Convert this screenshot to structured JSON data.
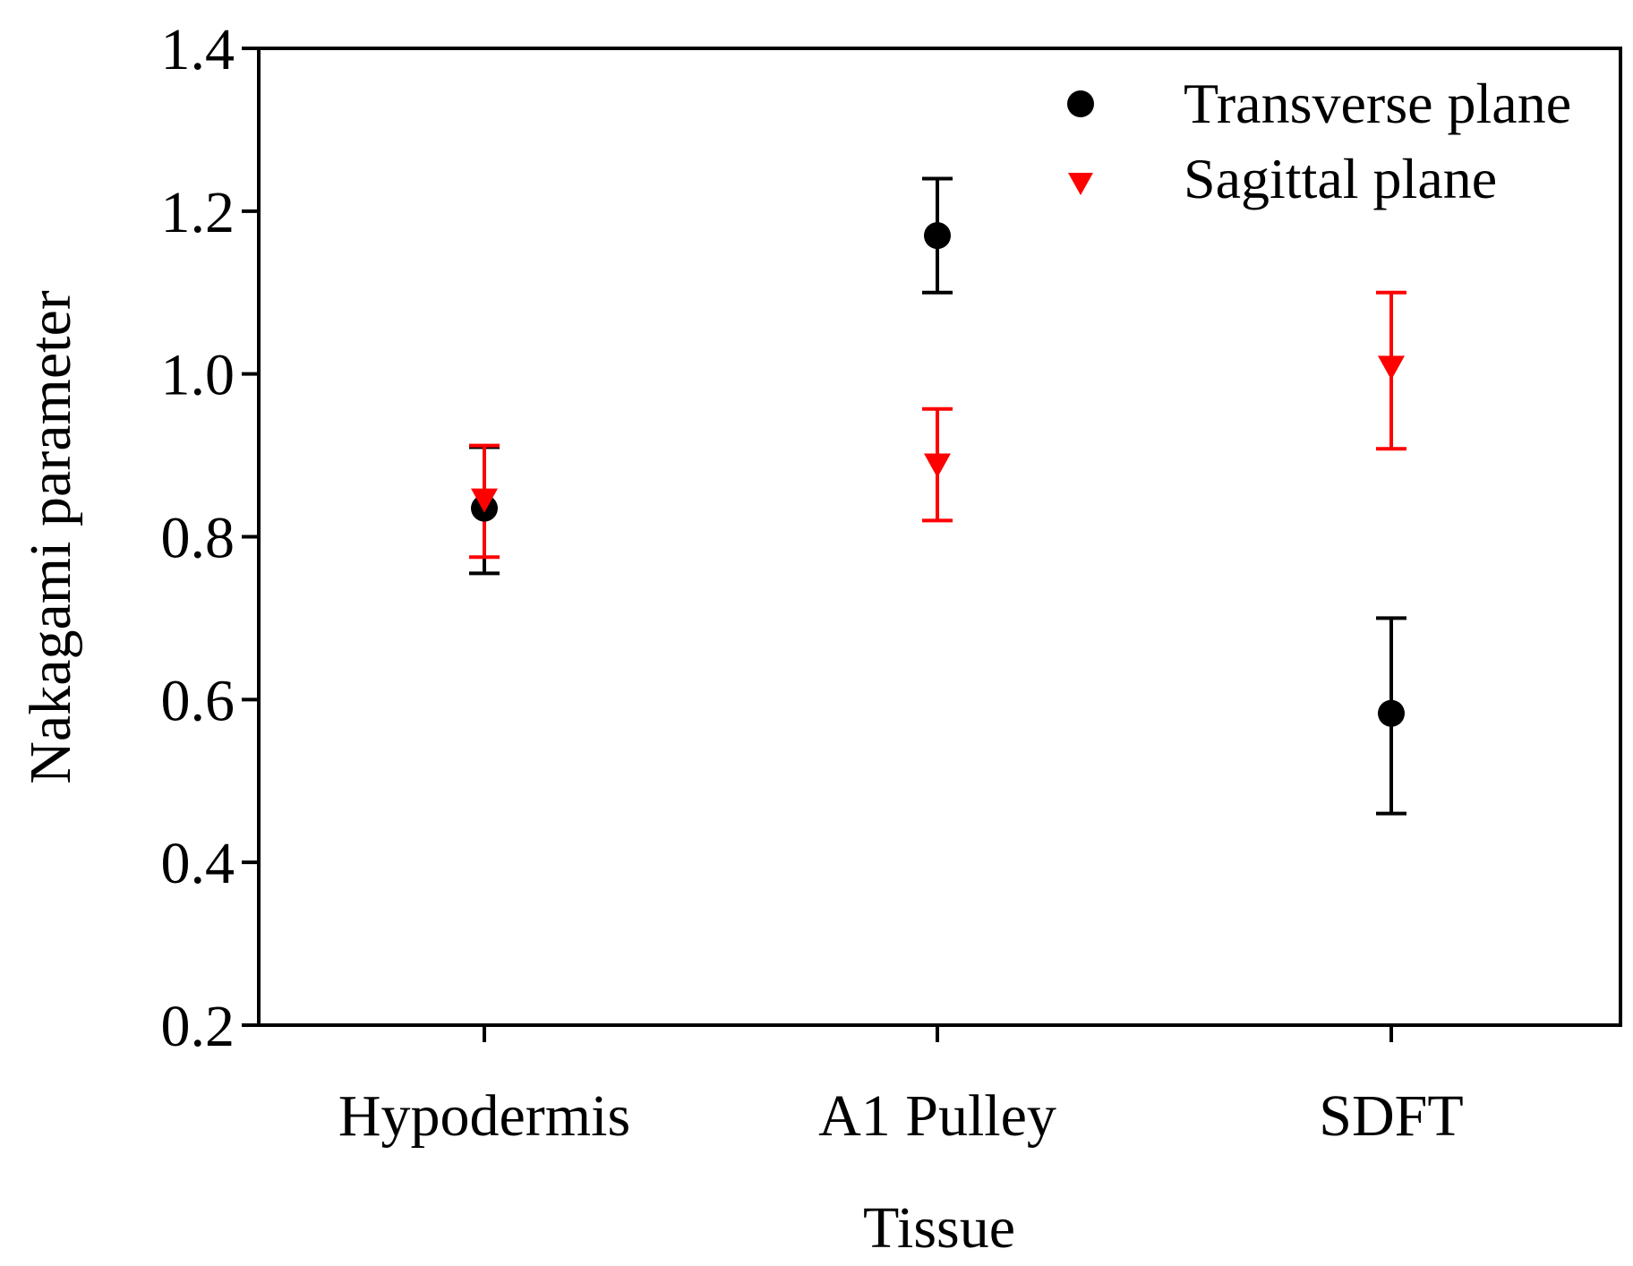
{
  "chart_data": {
    "type": "scatter",
    "title": "",
    "xlabel": "Tissue",
    "ylabel": "Nakagami parameter",
    "categories": [
      "Hypodermis",
      "A1 Pulley",
      "SDFT"
    ],
    "ylim": [
      0.2,
      1.4
    ],
    "yticks": [
      "0.2",
      "0.4",
      "0.6",
      "0.8",
      "1.0",
      "1.2",
      "1.4"
    ],
    "ytick_values": [
      0.2,
      0.4,
      0.6,
      0.8,
      1.0,
      1.2,
      1.4
    ],
    "grid": false,
    "legend_position": "top-right",
    "series": [
      {
        "name": "Transverse plane",
        "marker": "circle",
        "color": "#000000",
        "values": [
          0.835,
          1.17,
          0.583
        ],
        "err_low": [
          0.755,
          1.1,
          0.46
        ],
        "err_high": [
          0.91,
          1.24,
          0.7
        ]
      },
      {
        "name": "Sagittal plane",
        "marker": "triangle-down",
        "color": "#ff0000",
        "values": [
          0.845,
          0.888,
          1.008
        ],
        "err_low": [
          0.775,
          0.82,
          0.908
        ],
        "err_high": [
          0.912,
          0.957,
          1.1
        ]
      }
    ]
  }
}
